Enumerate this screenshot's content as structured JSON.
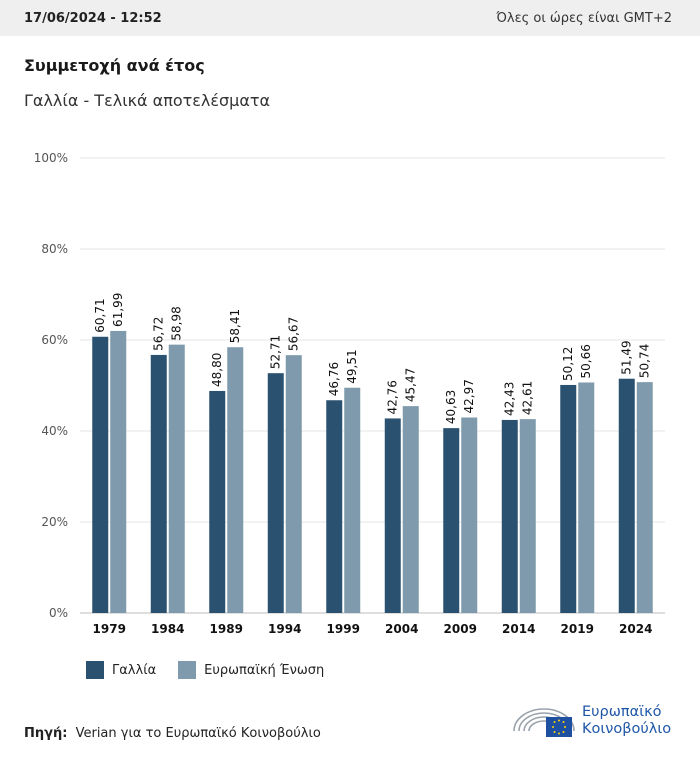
{
  "header": {
    "datetime": "17/06/2024 - 12:52",
    "timezone_note": "Όλες οι ώρες είναι GMT+2"
  },
  "title": "Συμμετοχή ανά έτος",
  "subtitle": "Γαλλία - Τελικά αποτελέσματα",
  "chart_data": {
    "type": "bar",
    "categories": [
      "1979",
      "1984",
      "1989",
      "1994",
      "1999",
      "2004",
      "2009",
      "2014",
      "2019",
      "2024"
    ],
    "series": [
      {
        "name": "Γαλλία",
        "color": "#2a5270",
        "values": [
          60.71,
          56.72,
          48.8,
          52.71,
          46.76,
          42.76,
          40.63,
          42.43,
          50.12,
          51.49
        ],
        "labels": [
          "60,71",
          "56,72",
          "48,80",
          "52,71",
          "46,76",
          "42,76",
          "40,63",
          "42,43",
          "50,12",
          "51,49"
        ]
      },
      {
        "name": "Ευρωπαϊκή Ένωση",
        "color": "#7f9aac",
        "values": [
          61.99,
          58.98,
          58.41,
          56.67,
          49.51,
          45.47,
          42.97,
          42.61,
          50.66,
          50.74
        ],
        "labels": [
          "61,99",
          "58,98",
          "58,41",
          "56,67",
          "49,51",
          "45,47",
          "42,97",
          "42,61",
          "50,66",
          "50,74"
        ]
      }
    ],
    "yticks": [
      "0%",
      "20%",
      "40%",
      "60%",
      "80%",
      "100%"
    ],
    "ylim": [
      0,
      100
    ],
    "grid": true,
    "legend_position": "bottom-left"
  },
  "legend": {
    "items": [
      {
        "label": "Γαλλία",
        "color": "#2a5270"
      },
      {
        "label": "Ευρωπαϊκή Ένωση",
        "color": "#7f9aac"
      }
    ]
  },
  "source": {
    "label": "Πηγή:",
    "text": "Verian για το Ευρωπαϊκό Κοινοβούλιο"
  },
  "logo": {
    "line1": "Ευρωπαϊκό",
    "line2": "Κοινοβούλιο",
    "icon": "european-parliament-hemicycle-icon"
  }
}
